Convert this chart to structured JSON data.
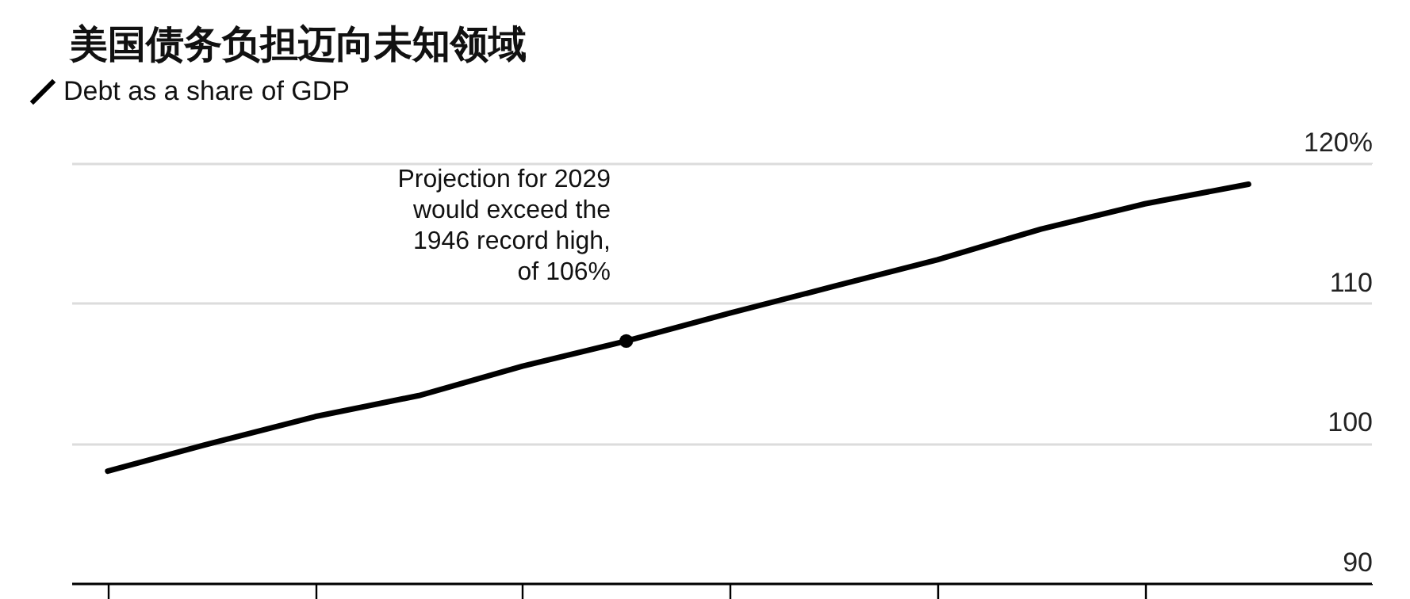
{
  "chart_data": {
    "type": "line",
    "title": "美国债务负担迈向未知领域",
    "categories": [
      null,
      null,
      null,
      null,
      null,
      null,
      null,
      null,
      null,
      null,
      null,
      null
    ],
    "series": [
      {
        "name": "Debt as a share of GDP",
        "color": "#000000",
        "marker": "none",
        "values": [
          98.0,
          100.0,
          101.9,
          103.4,
          105.5,
          107.3,
          109.3,
          111.2,
          113.1,
          115.3,
          117.1,
          118.5
        ]
      },
      {
        "type": "scatter",
        "color": "#000000",
        "marker": "circle",
        "values": [
          null,
          null,
          null,
          null,
          null,
          107.3,
          null,
          null,
          null,
          null,
          null,
          null
        ]
      }
    ],
    "annotations": [
      "Projection for 2029 would exceed the 1946 record high, of 106%"
    ],
    "ylim": [
      90,
      120
    ],
    "yticks": [
      90,
      100,
      110,
      {
        "value": 120,
        "label": "120%"
      }
    ],
    "grid": "y",
    "legend": "top left",
    "tick_labels": "y",
    "line_style": "solid"
  }
}
